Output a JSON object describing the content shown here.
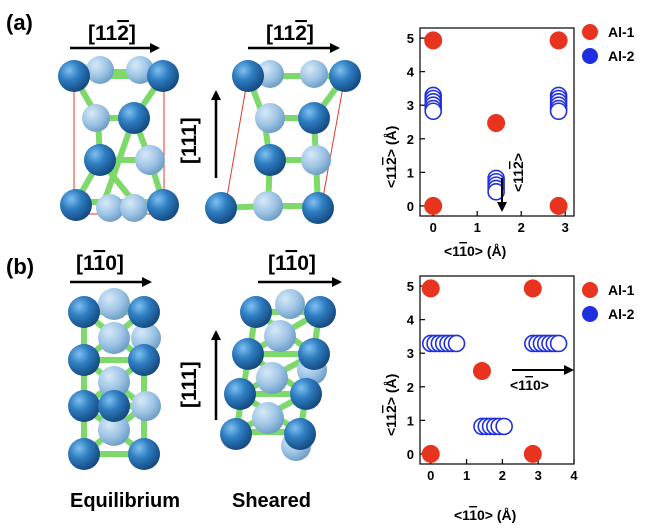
{
  "panels": [
    {
      "label": "(a)",
      "structures": [
        {
          "top_direction": "[11̅2]",
          "top_base": "[11",
          "top_bar": "2",
          "top_tail": "]",
          "side_direction": "[111]"
        },
        {
          "top_direction": "[11̅2]",
          "top_base": "[11",
          "top_bar": "2",
          "top_tail": "]",
          "side_direction": ""
        }
      ],
      "legend": [
        {
          "name": "Al-1",
          "color": "#e8331f",
          "filled": true
        },
        {
          "name": "Al-2",
          "color": "#1f2fe0",
          "filled": false
        }
      ],
      "annotation": {
        "text": "<112̅>",
        "parts": [
          "<11",
          "2",
          ">"
        ]
      }
    },
    {
      "label": "(b)",
      "structures": [
        {
          "top_direction": "[11̅0]",
          "top_base": "[1",
          "top_bar": "1",
          "top_tail": "0]",
          "side_direction": ""
        },
        {
          "top_direction": "[11̅0]",
          "top_base": "[1",
          "top_bar": "1",
          "top_tail": "0]",
          "side_direction": "[111]"
        }
      ],
      "legend": [
        {
          "name": "Al-1",
          "color": "#e8331f",
          "filled": true
        },
        {
          "name": "Al-2",
          "color": "#1f2fe0",
          "filled": false
        }
      ],
      "annotation": {
        "text": "<11̅0>",
        "parts": [
          "<1",
          "1",
          "0>"
        ]
      }
    }
  ],
  "captions": {
    "left": "Equilibrium",
    "right": "Sheared"
  },
  "colors": {
    "atom_blue": "#2f7ec2",
    "atom_pale": "#9cc3e4",
    "bond_green": "#7ed86a",
    "cell_line": "#e23a2a"
  },
  "chart_data": [
    {
      "type": "scatter",
      "xlabel": "<11̅0> (Å)",
      "xlabel_parts": [
        "<1",
        "1",
        "0> (Å)"
      ],
      "ylabel": "<112̅> (Å)",
      "ylabel_parts": [
        "<11",
        "2",
        "> (Å)"
      ],
      "xlim": [
        -0.3,
        3.2
      ],
      "ylim": [
        -0.3,
        5.3
      ],
      "xticks": [
        0,
        1,
        2,
        3
      ],
      "yticks": [
        0,
        1,
        2,
        3,
        4,
        5
      ],
      "legend_position": "outside-right",
      "series": [
        {
          "name": "Al-1",
          "filled": true,
          "color": "#e8331f",
          "x": [
            0,
            2.85,
            1.43,
            0,
            2.85
          ],
          "y": [
            4.93,
            4.93,
            2.47,
            0,
            0
          ]
        },
        {
          "name": "Al-2",
          "filled": false,
          "color": "#1f2fe0",
          "x": [
            0,
            0,
            0,
            0,
            0,
            0,
            2.85,
            2.85,
            2.85,
            2.85,
            2.85,
            2.85,
            1.43,
            1.43,
            1.43,
            1.43,
            1.43
          ],
          "y": [
            3.29,
            3.2,
            3.1,
            3.0,
            2.9,
            2.82,
            3.29,
            3.2,
            3.1,
            3.0,
            2.9,
            2.82,
            0.82,
            0.72,
            0.62,
            0.52,
            0.42
          ]
        }
      ]
    },
    {
      "type": "scatter",
      "xlabel": "<11̅0> (Å)",
      "xlabel_parts": [
        "<1",
        "1",
        "0> (Å)"
      ],
      "ylabel": "<112̅> (Å)",
      "ylabel_parts": [
        "<11",
        "2",
        "> (Å)"
      ],
      "xlim": [
        -0.3,
        4.0
      ],
      "ylim": [
        -0.3,
        5.3
      ],
      "xticks": [
        0,
        1,
        2,
        3,
        4
      ],
      "yticks": [
        0,
        1,
        2,
        3,
        4,
        5
      ],
      "legend_position": "outside-right",
      "series": [
        {
          "name": "Al-1",
          "filled": true,
          "color": "#e8331f",
          "x": [
            0,
            2.85,
            1.43,
            0,
            2.85
          ],
          "y": [
            4.93,
            4.93,
            2.47,
            0,
            0
          ]
        },
        {
          "name": "Al-2",
          "filled": false,
          "color": "#1f2fe0",
          "x": [
            0,
            0.12,
            0.24,
            0.36,
            0.48,
            0.6,
            0.72,
            2.85,
            2.97,
            3.09,
            3.21,
            3.33,
            3.45,
            3.57,
            1.43,
            1.55,
            1.67,
            1.79,
            1.91,
            2.05
          ],
          "y": [
            3.29,
            3.29,
            3.29,
            3.29,
            3.29,
            3.29,
            3.29,
            3.29,
            3.29,
            3.29,
            3.29,
            3.29,
            3.29,
            3.29,
            0.82,
            0.82,
            0.82,
            0.82,
            0.82,
            0.82
          ]
        }
      ]
    }
  ]
}
